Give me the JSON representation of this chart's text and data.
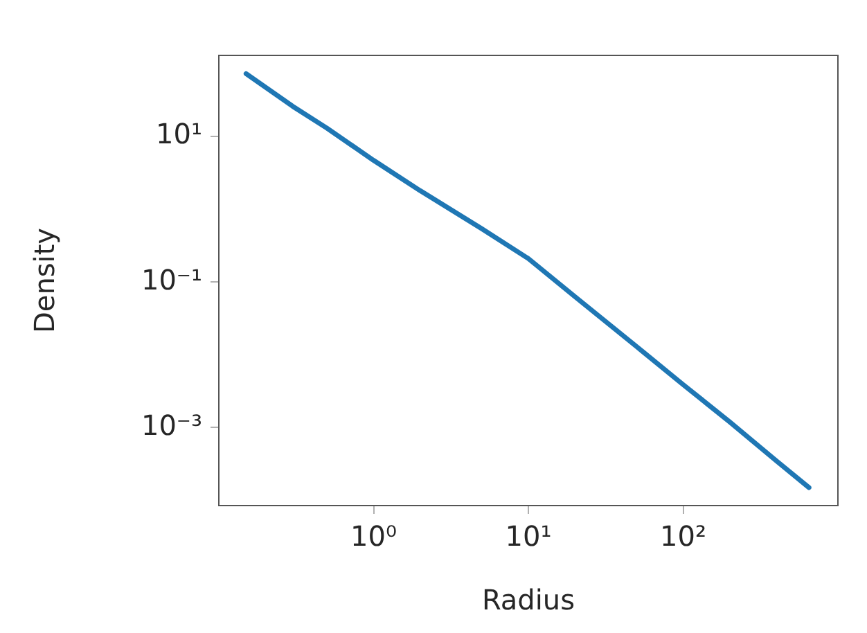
{
  "chart_data": {
    "type": "line",
    "xlabel": "Radius",
    "ylabel": "Density",
    "log": "xy",
    "grid": false,
    "legend": false,
    "marker": "none",
    "line_style": "solid",
    "x": [
      0.15,
      0.3,
      0.5,
      1,
      2,
      5,
      10,
      20,
      50,
      100,
      200,
      400,
      650
    ],
    "series": [
      {
        "color": "#1f77b4",
        "values": [
          73,
          26,
          13,
          4.7,
          1.8,
          0.54,
          0.21,
          0.063,
          0.013,
          0.0039,
          0.0012,
          0.00035,
          0.00015
        ]
      }
    ],
    "xlim": [
      0.1,
      1000
    ],
    "ylim": [
      8.5e-05,
      130
    ],
    "xticks": [
      {
        "value": 1,
        "label": "10⁰"
      },
      {
        "value": 10,
        "label": "10¹"
      },
      {
        "value": 100,
        "label": "10²"
      }
    ],
    "yticks": [
      {
        "value": 0.001,
        "label": "10⁻³"
      },
      {
        "value": 0.1,
        "label": "10⁻¹"
      },
      {
        "value": 10,
        "label": "10¹"
      }
    ]
  }
}
